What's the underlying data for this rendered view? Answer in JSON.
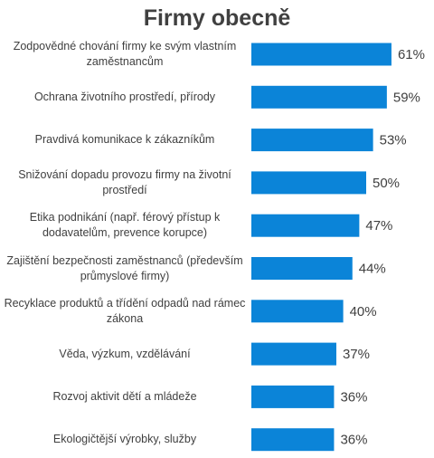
{
  "chart_data": {
    "type": "bar",
    "orientation": "horizontal",
    "title": "Firmy obecně",
    "categories": [
      "Zodpovědné chování firmy ke svým vlastním zaměstnancům",
      "Ochrana životního prostředí, přírody",
      "Pravdivá komunikace k zákazníkům",
      "Snižování dopadu provozu firmy na životní prostředí",
      "Etika podnikání (např. férový přístup k dodavatelům, prevence korupce)",
      "Zajištění bezpečnosti zaměstnanců (především průmyslové firmy)",
      "Recyklace produktů a třídění odpadů nad rámec zákona",
      "Věda, výzkum, vzdělávání",
      "Rozvoj aktivit dětí a mládeže",
      "Ekologičtější výrobky, služby"
    ],
    "values": [
      61,
      59,
      53,
      50,
      47,
      44,
      40,
      37,
      36,
      36
    ],
    "value_labels": [
      "61%",
      "59%",
      "53%",
      "50%",
      "47%",
      "44%",
      "40%",
      "37%",
      "36%",
      "36%"
    ],
    "bar_color": "#0b84d8",
    "xlim": [
      0,
      100
    ],
    "grid": false,
    "legend": "none"
  }
}
